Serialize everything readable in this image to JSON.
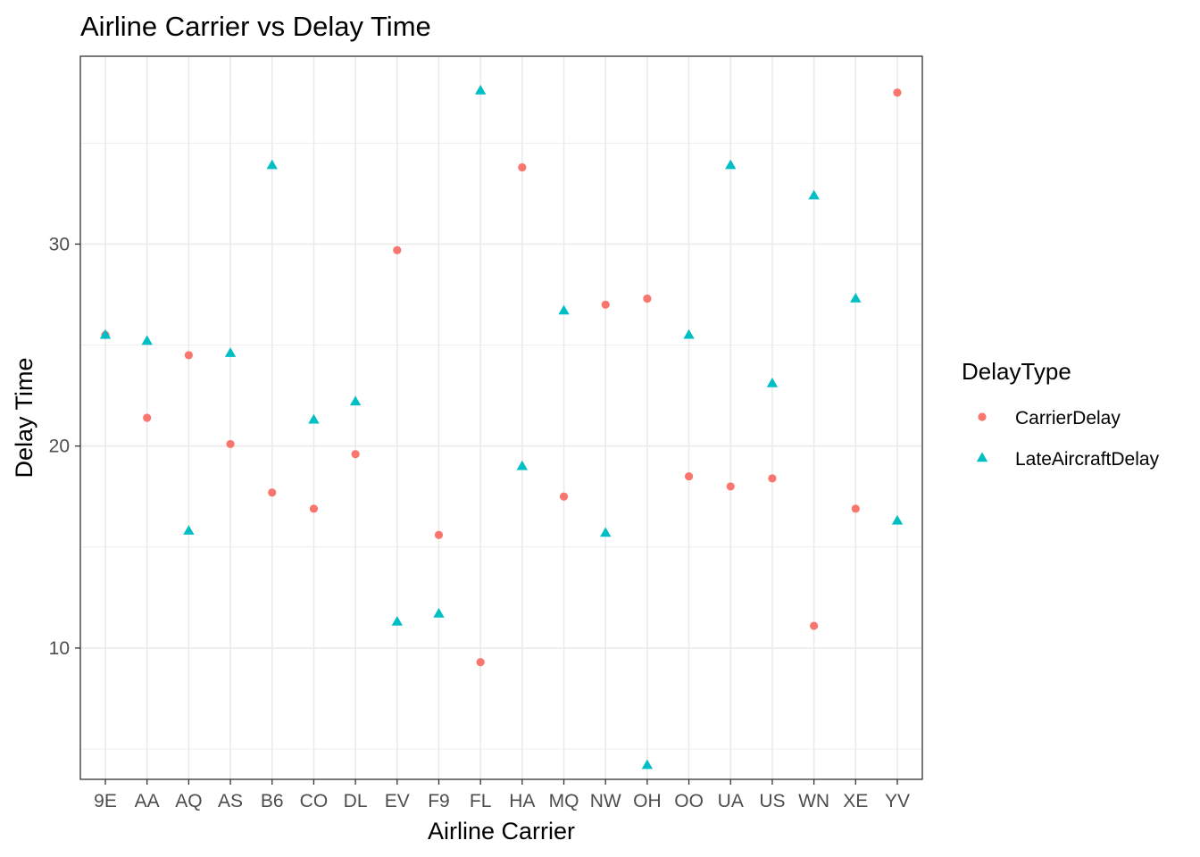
{
  "chart_data": {
    "type": "scatter",
    "title": "Airline Carrier vs Delay Time",
    "xlabel": "Airline Carrier",
    "ylabel": "Delay Time",
    "categories": [
      "9E",
      "AA",
      "AQ",
      "AS",
      "B6",
      "CO",
      "DL",
      "EV",
      "F9",
      "FL",
      "HA",
      "MQ",
      "NW",
      "OH",
      "OO",
      "UA",
      "US",
      "WN",
      "XE",
      "YV"
    ],
    "ylim": [
      3.5,
      39.3
    ],
    "yticks": [
      10,
      20,
      30
    ],
    "yticks_minor": [
      5,
      15,
      25,
      35
    ],
    "grid": true,
    "legend": {
      "title": "DelayType",
      "placement": "right"
    },
    "series": [
      {
        "name": "CarrierDelay",
        "marker": "circle",
        "color": "#F8766D",
        "values": [
          25.5,
          21.4,
          24.5,
          20.1,
          17.7,
          16.9,
          19.6,
          29.7,
          15.6,
          9.3,
          33.8,
          17.5,
          27.0,
          27.3,
          18.5,
          18.0,
          18.4,
          11.1,
          16.9,
          37.5
        ]
      },
      {
        "name": "LateAircraftDelay",
        "marker": "triangle",
        "color": "#00BFC4",
        "values": [
          25.5,
          25.2,
          15.8,
          24.6,
          33.9,
          21.3,
          22.2,
          11.3,
          11.7,
          37.6,
          19.0,
          26.7,
          15.7,
          4.2,
          25.5,
          33.9,
          23.1,
          32.4,
          27.3,
          16.3
        ]
      }
    ]
  }
}
